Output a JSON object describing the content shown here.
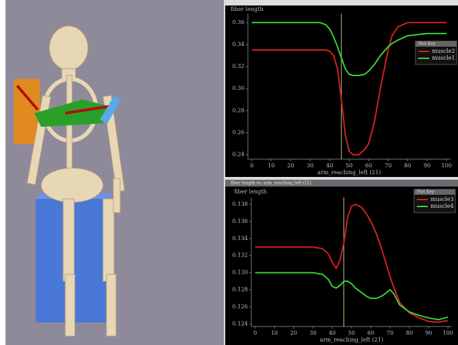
{
  "chart_data": [
    {
      "type": "line",
      "ylabel": "fiber length",
      "xlabel": "arm_reaching_left (21)",
      "legend_title": "Plot Key",
      "x": [
        0,
        10,
        20,
        30,
        35,
        38,
        40,
        42,
        44,
        46,
        48,
        50,
        52,
        55,
        58,
        60,
        63,
        66,
        70,
        72,
        75,
        80,
        85,
        90,
        95,
        100
      ],
      "series": [
        {
          "name": "muscle2",
          "color": "#d42020",
          "values": [
            0.335,
            0.335,
            0.335,
            0.335,
            0.335,
            0.335,
            0.334,
            0.33,
            0.318,
            0.29,
            0.258,
            0.243,
            0.24,
            0.24,
            0.245,
            0.25,
            0.27,
            0.3,
            0.335,
            0.348,
            0.356,
            0.36,
            0.36,
            0.36,
            0.36,
            0.36
          ]
        },
        {
          "name": "muscle1",
          "color": "#3ad13a",
          "values": [
            0.36,
            0.36,
            0.36,
            0.36,
            0.36,
            0.358,
            0.354,
            0.347,
            0.338,
            0.328,
            0.318,
            0.313,
            0.312,
            0.312,
            0.313,
            0.316,
            0.322,
            0.33,
            0.338,
            0.341,
            0.344,
            0.348,
            0.349,
            0.35,
            0.35,
            0.35
          ]
        }
      ],
      "cursor": 46,
      "xlim": [
        -2,
        102
      ],
      "xticks": [
        0,
        10,
        20,
        30,
        40,
        50,
        60,
        70,
        80,
        90,
        100
      ],
      "ylim": [
        0.236,
        0.368
      ],
      "yticks": [
        0.24,
        0.26,
        0.28,
        {
          "value": 0.3,
          "label": "0.30"
        },
        0.32,
        0.34,
        0.36
      ]
    },
    {
      "type": "line",
      "window_title": "fiber length vs. arm_reaching_left (21)",
      "ylabel": "fiber length",
      "xlabel": "arm_reaching_left (21)",
      "legend_title": "Plot Key",
      "x": [
        0,
        10,
        20,
        30,
        35,
        38,
        40,
        42,
        44,
        46,
        48,
        50,
        52,
        55,
        58,
        60,
        63,
        66,
        70,
        72,
        75,
        80,
        85,
        90,
        95,
        100
      ],
      "series": [
        {
          "name": "muscle3",
          "color": "#d42020",
          "values": [
            0.133,
            0.133,
            0.133,
            0.133,
            0.1328,
            0.1322,
            0.1312,
            0.1305,
            0.1315,
            0.1335,
            0.1365,
            0.1378,
            0.138,
            0.1377,
            0.1368,
            0.136,
            0.1345,
            0.1325,
            0.1295,
            0.1282,
            0.1265,
            0.1253,
            0.1247,
            0.1243,
            0.1242,
            0.1244
          ]
        },
        {
          "name": "muscle4",
          "color": "#3ad13a",
          "values": [
            0.13,
            0.13,
            0.13,
            0.13,
            0.1298,
            0.1292,
            0.1284,
            0.1282,
            0.1285,
            0.129,
            0.129,
            0.1287,
            0.1282,
            0.1277,
            0.1272,
            0.127,
            0.127,
            0.1273,
            0.128,
            0.1275,
            0.1262,
            0.1254,
            0.125,
            0.1247,
            0.1245,
            0.1248
          ]
        }
      ],
      "cursor": 46,
      "xlim": [
        -2,
        102
      ],
      "xticks": [
        0,
        10,
        20,
        30,
        40,
        50,
        60,
        70,
        80,
        90,
        100
      ],
      "ylim": [
        0.1237,
        0.1388
      ],
      "yticks": [
        0.124,
        0.126,
        0.128,
        {
          "value": 0.13,
          "label": "0.130"
        },
        0.132,
        0.134,
        0.136,
        0.138
      ]
    }
  ]
}
